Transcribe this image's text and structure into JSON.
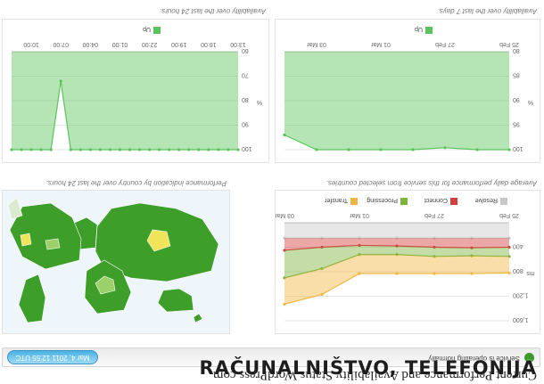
{
  "header": {
    "title": "Current Performance and Availability Status WordPress.com",
    "status_text": "Service is operating normally",
    "date_button": "Mar 4, 2011 12:55 UTC"
  },
  "performance": {
    "caption": "Average daily performance for this service from selected countries.",
    "ylabel": "ms",
    "legend": [
      "Resolve",
      "Connect",
      "Processing",
      "Transfer"
    ],
    "colors": {
      "Resolve": "#c8c8c8",
      "Connect": "#d43b3b",
      "Processing": "#7cb33b",
      "Transfer": "#f2b640"
    }
  },
  "map": {
    "caption": "Performance indication by country over the last 24 hours."
  },
  "avail7": {
    "caption": "Availability over the last 7 days.",
    "legend": "Up"
  },
  "avail24": {
    "caption": "Availability over the last 24 hours.",
    "legend": "Up"
  },
  "watermark": "RAČUNALNIŠTVO, TELEFONIJA",
  "chart_data": [
    {
      "type": "area",
      "title": "",
      "ylabel": "ms",
      "ylim": [
        0,
        1600
      ],
      "yticks": [
        "400",
        "800",
        "1,200",
        "1,600"
      ],
      "categories": [
        "25 Feb",
        "27 Feb",
        "01 Mar",
        "03 Mar"
      ],
      "x": [
        "25 Feb",
        "26 Feb",
        "27 Feb",
        "28 Feb",
        "01 Mar",
        "02 Mar",
        "03 Mar"
      ],
      "series": [
        {
          "name": "Resolve",
          "values": [
            250,
            250,
            250,
            250,
            250,
            250,
            250
          ]
        },
        {
          "name": "Connect",
          "values": [
            150,
            160,
            150,
            130,
            120,
            150,
            200
          ]
        },
        {
          "name": "Processing",
          "values": [
            150,
            130,
            150,
            140,
            150,
            350,
            450
          ]
        },
        {
          "name": "Transfer",
          "values": [
            270,
            290,
            280,
            310,
            310,
            420,
            430
          ]
        }
      ]
    },
    {
      "type": "area",
      "title": "",
      "ylabel": "%",
      "ylim": [
        80,
        100
      ],
      "yticks": [
        "80",
        "85",
        "90",
        "95",
        "100"
      ],
      "categories": [
        "25 Feb",
        "27 Feb",
        "01 Mar",
        "03 Mar"
      ],
      "x": [
        "25 Feb",
        "26 Feb",
        "27 Feb",
        "28 Feb",
        "01 Mar",
        "02 Mar",
        "03 Mar",
        "04 Mar"
      ],
      "series": [
        {
          "name": "Up",
          "values": [
            100,
            100,
            99.6,
            100,
            100,
            100,
            100,
            97
          ]
        }
      ]
    },
    {
      "type": "area",
      "title": "",
      "ylabel": "%",
      "ylim": [
        60,
        100
      ],
      "yticks": [
        "60",
        "70",
        "80",
        "90",
        "100"
      ],
      "categories": [
        "13:00",
        "16:00",
        "19:00",
        "22:00",
        "01:00",
        "04:00",
        "07:00",
        "10:00"
      ],
      "x": [
        "13:00",
        "14:00",
        "15:00",
        "16:00",
        "17:00",
        "18:00",
        "19:00",
        "20:00",
        "21:00",
        "22:00",
        "23:00",
        "00:00",
        "01:00",
        "02:00",
        "03:00",
        "04:00",
        "05:00",
        "06:00",
        "07:00",
        "08:00",
        "09:00",
        "10:00",
        "11:00",
        "12:00"
      ],
      "series": [
        {
          "name": "Up",
          "values": [
            100,
            100,
            100,
            100,
            100,
            100,
            100,
            100,
            100,
            100,
            100,
            100,
            100,
            100,
            100,
            100,
            100,
            100,
            72,
            100,
            100,
            100,
            100,
            100
          ]
        }
      ]
    }
  ]
}
